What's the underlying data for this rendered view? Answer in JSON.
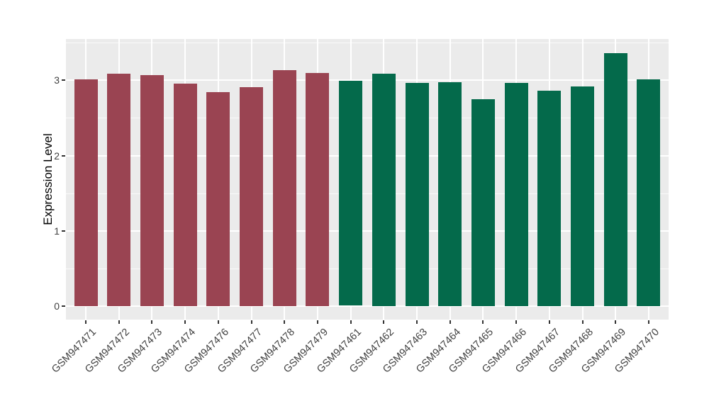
{
  "chart_data": {
    "type": "bar",
    "title": "",
    "xlabel": "",
    "ylabel": "Expression Level",
    "categories": [
      "GSM947471",
      "GSM947472",
      "GSM947473",
      "GSM947474",
      "GSM947476",
      "GSM947477",
      "GSM947478",
      "GSM947479",
      "GSM947461",
      "GSM947462",
      "GSM947463",
      "GSM947464",
      "GSM947465",
      "GSM947466",
      "GSM947467",
      "GSM947468",
      "GSM947469",
      "GSM947470"
    ],
    "values": [
      3.01,
      3.09,
      3.07,
      2.96,
      2.84,
      2.91,
      3.14,
      3.1,
      2.99,
      3.09,
      2.97,
      2.98,
      2.75,
      2.97,
      2.86,
      2.92,
      3.36,
      3.01
    ],
    "groups": [
      0,
      0,
      0,
      0,
      0,
      0,
      0,
      0,
      1,
      1,
      1,
      1,
      1,
      1,
      1,
      1,
      1,
      1
    ],
    "group_colors": [
      "#9A4452",
      "#046A4B"
    ],
    "ylim": [
      0,
      3.55
    ],
    "yticks_major": [
      0,
      1,
      2,
      3
    ],
    "ytick_labels": [
      "0",
      "1",
      "2",
      "3"
    ],
    "yticks_minor": [
      0.5,
      1.5,
      2.5,
      3.5
    ],
    "grid": true,
    "legend_position": "none",
    "bar_width_fraction": 0.7,
    "panel_background": "#EBEBEB",
    "grid_color": "#FFFFFF",
    "axis_text_color": "#404040",
    "axis_title_color": "#000000",
    "tick_mark_color": "#333333"
  }
}
